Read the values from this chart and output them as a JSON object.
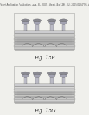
{
  "bg_color": "#f0f0ec",
  "header_text": "Patent Application Publication   Aug. 30, 2005  Sheet 44 of 296   US 2005/0184796 A1",
  "header_fontsize": 2.2,
  "fig_labels": [
    "Fig. 18F",
    "Fig. 18G"
  ],
  "fig_label_fontsize": 5.0,
  "line_color": "#444444",
  "dark_color": "#222222",
  "layer_colors": [
    "#d8d8d8",
    "#c8c8c8",
    "#b8b8b8",
    "#c0c0c0",
    "#d0d0d0",
    "#c4c4c4",
    "#b0b0b0",
    "#bebebe"
  ],
  "bump_colors": [
    "#a0a0a8",
    "#b0b0b8",
    "#c0c0c8"
  ],
  "wire_color": "#333333",
  "label_color": "#333333",
  "annotation_color": "#555555"
}
